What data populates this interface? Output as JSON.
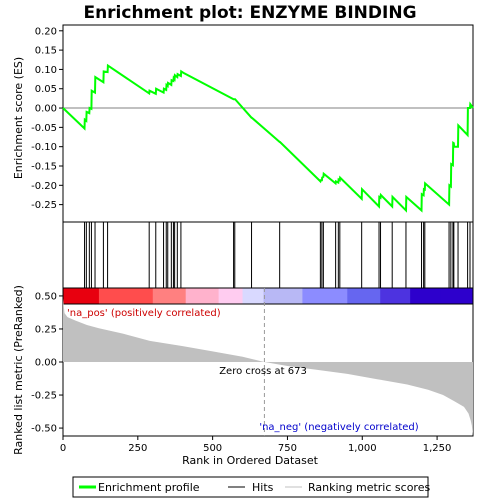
{
  "chart_data": {
    "type": "line",
    "title": "Enrichment plot: ENZYME BINDING",
    "es_panel": {
      "ylabel": "Enrichment score (ES)",
      "ylim": [
        -0.295,
        0.215
      ],
      "yticks": [
        0.2,
        0.15,
        0.1,
        0.05,
        0.0,
        -0.05,
        -0.1,
        -0.15,
        -0.2,
        -0.25
      ],
      "ytick_labels": [
        "0.20",
        "0.15",
        "0.10",
        "0.05",
        "0.00",
        "-0.05",
        "-0.10",
        "-0.15",
        "-0.20",
        "-0.25"
      ],
      "color": "#00ff00",
      "series": {
        "name": "Enrichment profile",
        "x": [
          0,
          72,
          73,
          78,
          79,
          88,
          89,
          95,
          96,
          107,
          108,
          135,
          136,
          149,
          150,
          288,
          289,
          310,
          311,
          336,
          337,
          345,
          346,
          350,
          351,
          362,
          363,
          369,
          370,
          373,
          374,
          382,
          383,
          394,
          395,
          405,
          570,
          571,
          574,
          575,
          630,
          631,
          724,
          725,
          860,
          861,
          865,
          866,
          870,
          871,
          911,
          912,
          920,
          921,
          925,
          926,
          998,
          999,
          1056,
          1057,
          1061,
          1062,
          1100,
          1101,
          1146,
          1147,
          1198,
          1199,
          1205,
          1206,
          1209,
          1210,
          1290,
          1291,
          1296,
          1297,
          1303,
          1304,
          1306,
          1307,
          1320,
          1321,
          1352,
          1353,
          1360,
          1361,
          1370
        ],
        "y": [
          0.0,
          -0.053,
          -0.03,
          -0.033,
          -0.01,
          -0.013,
          0.0,
          -0.002,
          0.045,
          0.04,
          0.08,
          0.067,
          0.095,
          0.093,
          0.11,
          0.038,
          0.045,
          0.037,
          0.05,
          0.04,
          0.05,
          0.047,
          0.06,
          0.057,
          0.065,
          0.06,
          0.072,
          0.07,
          0.078,
          0.075,
          0.085,
          0.08,
          0.088,
          0.083,
          0.095,
          0.09,
          0.023,
          0.023,
          0.023,
          0.023,
          -0.025,
          -0.025,
          -0.088,
          -0.088,
          -0.19,
          -0.187,
          -0.187,
          -0.18,
          -0.178,
          -0.17,
          -0.195,
          -0.19,
          -0.193,
          -0.185,
          -0.187,
          -0.18,
          -0.235,
          -0.21,
          -0.255,
          -0.23,
          -0.232,
          -0.225,
          -0.255,
          -0.23,
          -0.265,
          -0.23,
          -0.265,
          -0.223,
          -0.226,
          -0.21,
          -0.211,
          -0.195,
          -0.25,
          -0.2,
          -0.203,
          -0.145,
          -0.148,
          -0.09,
          -0.091,
          -0.1,
          -0.1,
          -0.045,
          -0.07,
          0.0,
          0.0,
          0.01,
          0.0
        ]
      }
    },
    "hits_panel": {
      "hit_positions": [
        72,
        78,
        88,
        95,
        107,
        135,
        149,
        288,
        310,
        336,
        345,
        350,
        362,
        369,
        373,
        382,
        394,
        570,
        574,
        630,
        724,
        860,
        865,
        870,
        911,
        920,
        925,
        998,
        1056,
        1061,
        1100,
        1146,
        1198,
        1205,
        1209,
        1290,
        1296,
        1303,
        1306,
        1320,
        1352,
        1360
      ]
    },
    "heatmap_bar": {
      "colors": [
        "#e8000f",
        "#ff4d4d",
        "#ff8080",
        "#ffb2cc",
        "#ffccf0",
        "#d9d9ff",
        "#b8b8f5",
        "#8c8cff",
        "#6666f0",
        "#4d33e0",
        "#2d00cc"
      ],
      "breaks": [
        0,
        120,
        300,
        410,
        520,
        600,
        670,
        800,
        950,
        1060,
        1160,
        1260,
        1370
      ]
    },
    "metric_panel": {
      "ylabel": "Ranked list metric (PreRanked)",
      "xlabel": "Rank in Ordered Dataset",
      "ylim": [
        -0.56,
        0.56
      ],
      "yticks": [
        0.5,
        0.25,
        0.0,
        -0.25,
        -0.5
      ],
      "ytick_labels": [
        "0.50",
        "0.25",
        "0.00",
        "-0.25",
        "-0.50"
      ],
      "xlim": [
        0,
        1370
      ],
      "xticks": [
        0,
        250,
        500,
        750,
        1000,
        1250
      ],
      "xtick_labels": [
        "0",
        "250",
        "500",
        "750",
        "1,000",
        "1,250"
      ],
      "zero_cross_label": "Zero cross at 673",
      "zero_cross": 673,
      "pos_label": "'na_pos' (positively correlated)",
      "neg_label": "'na_neg' (negatively correlated)",
      "pos_color": "#cc0000",
      "neg_color": "#0000cc",
      "fill_color": "#c0c0c0",
      "profile": {
        "x": [
          0,
          5,
          15,
          40,
          80,
          120,
          200,
          290,
          400,
          500,
          600,
          673,
          750,
          850,
          950,
          1050,
          1150,
          1220,
          1270,
          1310,
          1340,
          1355,
          1362,
          1366,
          1370
        ],
        "y": [
          0.48,
          0.37,
          0.34,
          0.315,
          0.28,
          0.255,
          0.215,
          0.16,
          0.12,
          0.08,
          0.04,
          0.0,
          -0.03,
          -0.06,
          -0.09,
          -0.13,
          -0.17,
          -0.21,
          -0.25,
          -0.3,
          -0.34,
          -0.39,
          -0.44,
          -0.48,
          -0.56
        ]
      }
    },
    "legend": {
      "items": [
        {
          "label": "Enrichment profile",
          "color": "#00ff00",
          "kind": "thick-line"
        },
        {
          "label": "Hits",
          "color": "#000000",
          "kind": "line"
        },
        {
          "label": "Ranking metric scores",
          "color": "#c0c0c0",
          "kind": "line"
        }
      ]
    }
  }
}
